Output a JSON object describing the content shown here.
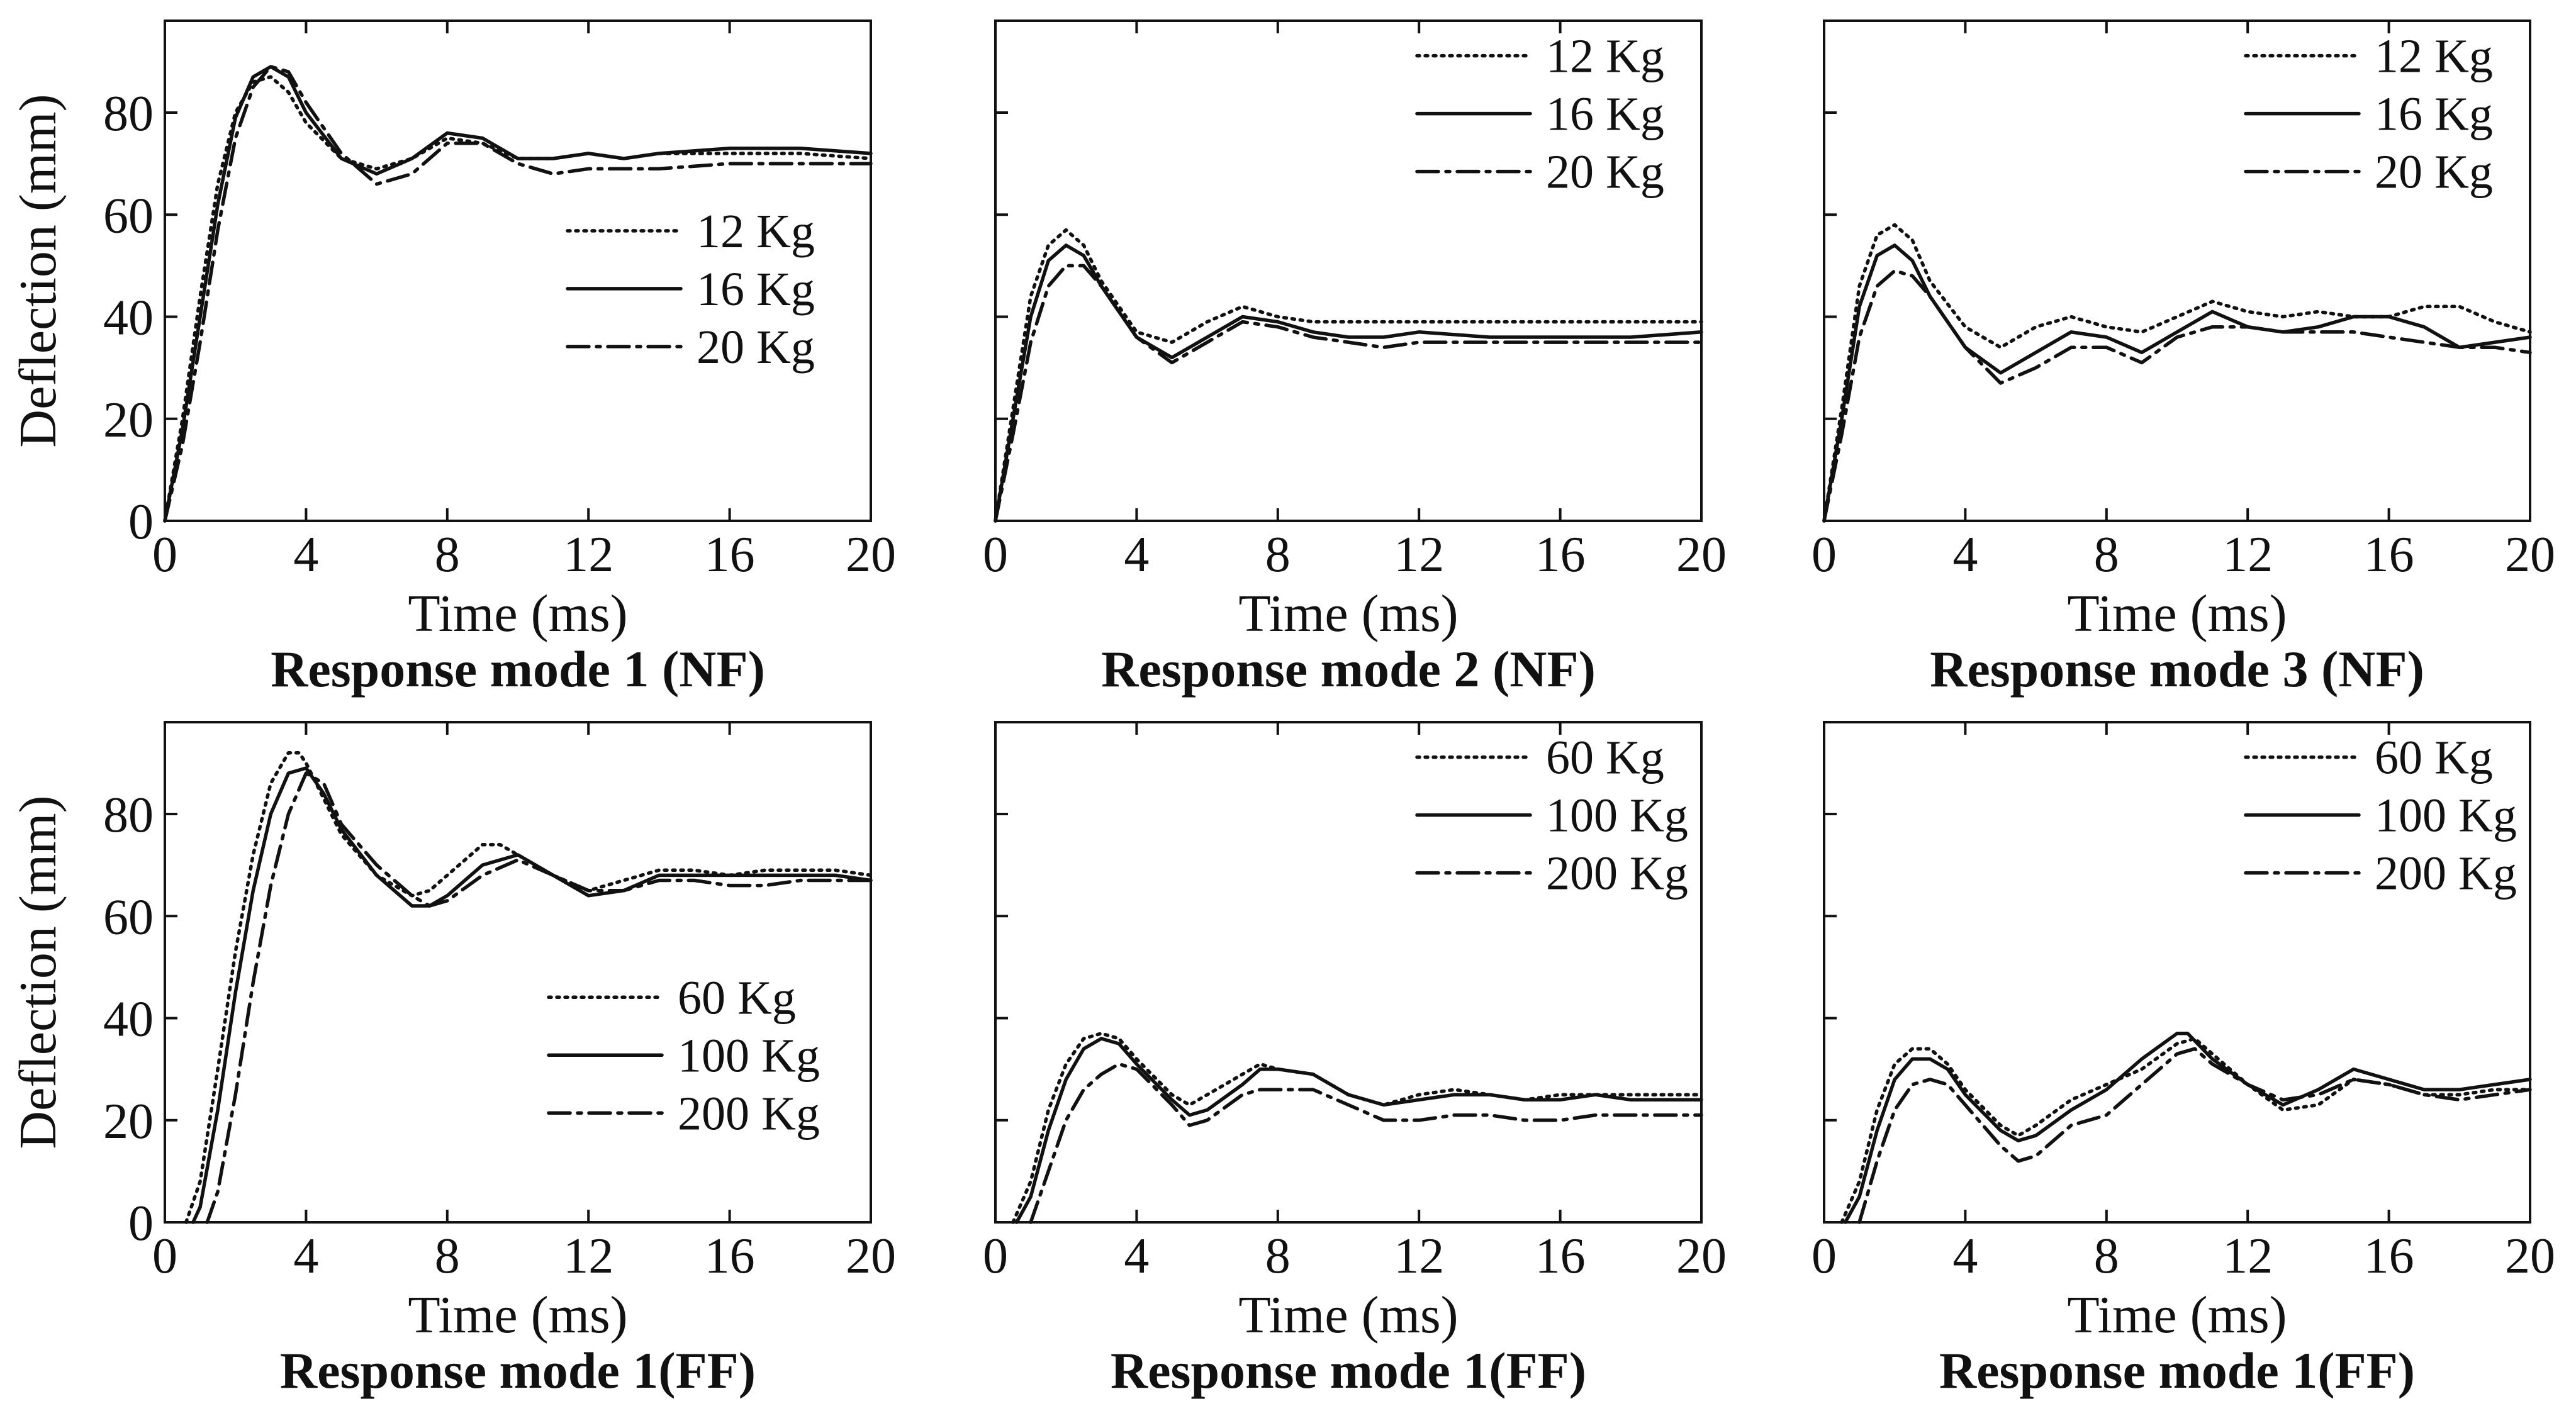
{
  "chart_data": [
    {
      "type": "line",
      "title": "Response mode 1 (NF)",
      "xlabel": "Time (ms)",
      "ylabel": "Deflection (mm)",
      "xlim": [
        0,
        20
      ],
      "ylim": [
        0,
        98
      ],
      "xticks": [
        0,
        4,
        8,
        12,
        16,
        20
      ],
      "yticks": [
        0,
        20,
        40,
        60,
        80
      ],
      "legend_position": "center-right",
      "series": [
        {
          "name": "12 Kg",
          "style": "dotted",
          "x": [
            0,
            0.5,
            1,
            1.5,
            2,
            2.5,
            3,
            3.5,
            4,
            5,
            6,
            7,
            8,
            9,
            10,
            11,
            12,
            13,
            14,
            16,
            18,
            20
          ],
          "y": [
            0,
            20,
            44,
            66,
            80,
            86,
            87,
            84,
            78,
            71,
            69,
            71,
            75,
            74,
            71,
            71,
            72,
            71,
            72,
            72,
            72,
            71
          ]
        },
        {
          "name": "16 Kg",
          "style": "solid",
          "x": [
            0,
            0.5,
            1,
            1.5,
            2,
            2.5,
            3,
            3.5,
            4,
            5,
            6,
            7,
            8,
            9,
            10,
            11,
            12,
            13,
            14,
            16,
            18,
            20
          ],
          "y": [
            0,
            18,
            40,
            62,
            79,
            87,
            89,
            87,
            80,
            71,
            68,
            71,
            76,
            75,
            71,
            71,
            72,
            71,
            72,
            73,
            73,
            72
          ]
        },
        {
          "name": "20 Kg",
          "style": "dashdot",
          "x": [
            0,
            0.5,
            1,
            1.5,
            2,
            2.5,
            3,
            3.5,
            4,
            5,
            6,
            7,
            8,
            9,
            10,
            11,
            12,
            13,
            14,
            16,
            18,
            20
          ],
          "y": [
            0,
            15,
            35,
            57,
            75,
            85,
            89,
            88,
            82,
            72,
            66,
            68,
            74,
            74,
            70,
            68,
            69,
            69,
            69,
            70,
            70,
            70
          ]
        }
      ]
    },
    {
      "type": "line",
      "title": "Response mode 2 (NF)",
      "xlabel": "Time (ms)",
      "ylabel": "",
      "xlim": [
        0,
        20
      ],
      "ylim": [
        0,
        98
      ],
      "xticks": [
        0,
        4,
        8,
        12,
        16,
        20
      ],
      "yticks": [],
      "legend_position": "top-right",
      "series": [
        {
          "name": "12 Kg",
          "style": "dotted",
          "x": [
            0,
            0.5,
            1,
            1.5,
            2,
            2.5,
            3,
            4,
            5,
            6,
            7,
            8,
            9,
            10,
            11,
            12,
            14,
            16,
            18,
            20
          ],
          "y": [
            0,
            22,
            44,
            54,
            57,
            54,
            47,
            37,
            35,
            39,
            42,
            40,
            39,
            39,
            39,
            39,
            39,
            39,
            39,
            39
          ]
        },
        {
          "name": "16 Kg",
          "style": "solid",
          "x": [
            0,
            0.5,
            1,
            1.5,
            2,
            2.5,
            3,
            4,
            5,
            6,
            7,
            8,
            9,
            10,
            11,
            12,
            14,
            16,
            18,
            20
          ],
          "y": [
            0,
            20,
            40,
            51,
            54,
            52,
            46,
            36,
            32,
            36,
            40,
            39,
            37,
            36,
            36,
            37,
            36,
            36,
            36,
            37
          ]
        },
        {
          "name": "20 Kg",
          "style": "dashdot",
          "x": [
            0,
            0.5,
            1,
            1.5,
            2,
            2.5,
            3,
            4,
            5,
            6,
            7,
            8,
            9,
            10,
            11,
            12,
            14,
            16,
            18,
            20
          ],
          "y": [
            0,
            17,
            35,
            46,
            50,
            50,
            46,
            36,
            31,
            35,
            39,
            38,
            36,
            35,
            34,
            35,
            35,
            35,
            35,
            35
          ]
        }
      ]
    },
    {
      "type": "line",
      "title": "Response mode 3 (NF)",
      "xlabel": "Time (ms)",
      "ylabel": "",
      "xlim": [
        0,
        20
      ],
      "ylim": [
        0,
        98
      ],
      "xticks": [
        0,
        4,
        8,
        12,
        16,
        20
      ],
      "yticks": [],
      "legend_position": "top-right",
      "series": [
        {
          "name": "12 Kg",
          "style": "dotted",
          "x": [
            0,
            0.5,
            1,
            1.5,
            2,
            2.5,
            3,
            4,
            5,
            6,
            7,
            8,
            9,
            10,
            11,
            12,
            13,
            14,
            15,
            16,
            17,
            18,
            19,
            20
          ],
          "y": [
            0,
            22,
            46,
            56,
            58,
            55,
            47,
            38,
            34,
            38,
            40,
            38,
            37,
            40,
            43,
            41,
            40,
            41,
            40,
            40,
            42,
            42,
            39,
            37
          ]
        },
        {
          "name": "16 Kg",
          "style": "solid",
          "x": [
            0,
            0.5,
            1,
            1.5,
            2,
            2.5,
            3,
            4,
            5,
            6,
            7,
            8,
            9,
            10,
            11,
            12,
            13,
            14,
            15,
            16,
            17,
            18,
            19,
            20
          ],
          "y": [
            0,
            20,
            42,
            52,
            54,
            51,
            44,
            34,
            29,
            33,
            37,
            36,
            33,
            37,
            41,
            38,
            37,
            38,
            40,
            40,
            38,
            34,
            35,
            36
          ]
        },
        {
          "name": "20 Kg",
          "style": "dashdot",
          "x": [
            0,
            0.5,
            1,
            1.5,
            2,
            2.5,
            3,
            4,
            5,
            6,
            7,
            8,
            9,
            10,
            11,
            12,
            13,
            14,
            15,
            16,
            17,
            18,
            19,
            20
          ],
          "y": [
            0,
            17,
            36,
            46,
            49,
            48,
            44,
            34,
            27,
            30,
            34,
            34,
            31,
            36,
            38,
            38,
            37,
            37,
            37,
            36,
            35,
            34,
            34,
            33
          ]
        }
      ]
    },
    {
      "type": "line",
      "title": "Response mode 1(FF)",
      "xlabel": "Time (ms)",
      "ylabel": "Deflection (mm)",
      "xlim": [
        0,
        20
      ],
      "ylim": [
        0,
        98
      ],
      "xticks": [
        0,
        4,
        8,
        12,
        16,
        20
      ],
      "yticks": [
        0,
        20,
        40,
        60,
        80
      ],
      "legend_position": "bottom-right",
      "series": [
        {
          "name": "60 Kg",
          "style": "dotted",
          "x": [
            0.6,
            1,
            1.5,
            2,
            2.5,
            3,
            3.5,
            3.8,
            4,
            4.5,
            5,
            6,
            7,
            7.5,
            8,
            9,
            9.5,
            10,
            11,
            12,
            13,
            14,
            15,
            16,
            17,
            18,
            19,
            20
          ],
          "y": [
            0,
            8,
            30,
            53,
            72,
            86,
            92,
            92,
            90,
            83,
            76,
            68,
            64,
            65,
            68,
            74,
            74,
            72,
            68,
            65,
            67,
            69,
            69,
            68,
            69,
            69,
            69,
            68
          ]
        },
        {
          "name": "100 Kg",
          "style": "solid",
          "x": [
            0.8,
            1,
            1.5,
            2,
            2.5,
            3,
            3.5,
            4,
            4.5,
            5,
            6,
            7,
            7.5,
            8,
            9,
            10,
            11,
            12,
            13,
            14,
            15,
            16,
            17,
            18,
            19,
            20
          ],
          "y": [
            0,
            3,
            22,
            45,
            65,
            80,
            88,
            89,
            84,
            77,
            68,
            62,
            62,
            64,
            70,
            72,
            68,
            64,
            65,
            68,
            68,
            68,
            68,
            68,
            68,
            67
          ]
        },
        {
          "name": "200 Kg",
          "style": "dashdot",
          "x": [
            1.2,
            1.5,
            2,
            2.5,
            3,
            3.5,
            4,
            4.5,
            5,
            6,
            7,
            7.5,
            8,
            9,
            10,
            11,
            12,
            13,
            14,
            15,
            16,
            17,
            18,
            19,
            20
          ],
          "y": [
            0,
            6,
            25,
            47,
            66,
            80,
            88,
            86,
            78,
            70,
            64,
            62,
            63,
            68,
            71,
            68,
            65,
            65,
            67,
            67,
            66,
            66,
            67,
            67,
            67
          ]
        }
      ]
    },
    {
      "type": "line",
      "title": "Response mode 1(FF)",
      "xlabel": "Time (ms)",
      "ylabel": "",
      "xlim": [
        0,
        20
      ],
      "ylim": [
        0,
        98
      ],
      "xticks": [
        0,
        4,
        8,
        12,
        16,
        20
      ],
      "yticks": [],
      "legend_position": "top-right",
      "series": [
        {
          "name": "60 Kg",
          "style": "dotted",
          "x": [
            0.5,
            1,
            1.5,
            2,
            2.5,
            3,
            3.5,
            4,
            5,
            5.5,
            6,
            7,
            7.5,
            8,
            9,
            10,
            11,
            12,
            13,
            14,
            15,
            16,
            17,
            18,
            19,
            20
          ],
          "y": [
            0,
            8,
            22,
            31,
            36,
            37,
            36,
            32,
            25,
            23,
            25,
            29,
            31,
            30,
            29,
            25,
            23,
            25,
            26,
            25,
            24,
            25,
            25,
            25,
            25,
            25
          ]
        },
        {
          "name": "100 Kg",
          "style": "solid",
          "x": [
            0.6,
            1,
            1.5,
            2,
            2.5,
            3,
            3.5,
            4,
            5,
            5.5,
            6,
            7,
            7.5,
            8,
            9,
            10,
            11,
            12,
            13,
            14,
            15,
            16,
            17,
            18,
            19,
            20
          ],
          "y": [
            0,
            5,
            18,
            28,
            34,
            36,
            35,
            31,
            24,
            21,
            22,
            27,
            30,
            30,
            29,
            25,
            23,
            24,
            25,
            25,
            24,
            24,
            25,
            24,
            24,
            24
          ]
        },
        {
          "name": "200 Kg",
          "style": "dashdot",
          "x": [
            1,
            1.5,
            2,
            2.5,
            3,
            3.5,
            4,
            5,
            5.5,
            6,
            7,
            7.5,
            8,
            9,
            10,
            11,
            12,
            13,
            14,
            15,
            16,
            17,
            18,
            19,
            20
          ],
          "y": [
            0,
            10,
            20,
            26,
            29,
            31,
            30,
            23,
            19,
            20,
            25,
            26,
            26,
            26,
            23,
            20,
            20,
            21,
            21,
            20,
            20,
            21,
            21,
            21,
            21
          ]
        }
      ]
    },
    {
      "type": "line",
      "title": "Response mode 1(FF)",
      "xlabel": "Time (ms)",
      "ylabel": "",
      "xlim": [
        0,
        20
      ],
      "ylim": [
        0,
        98
      ],
      "xticks": [
        0,
        4,
        8,
        12,
        16,
        20
      ],
      "yticks": [],
      "legend_position": "top-right",
      "series": [
        {
          "name": "60 Kg",
          "style": "dotted",
          "x": [
            0.5,
            1,
            1.5,
            2,
            2.5,
            3,
            3.5,
            4,
            5,
            5.5,
            6,
            7,
            8,
            9,
            10,
            10.5,
            11,
            12,
            13,
            14,
            15,
            16,
            17,
            18,
            19,
            20
          ],
          "y": [
            0,
            8,
            22,
            31,
            34,
            34,
            31,
            26,
            19,
            17,
            19,
            24,
            27,
            30,
            35,
            36,
            33,
            27,
            22,
            23,
            28,
            27,
            25,
            25,
            26,
            26
          ]
        },
        {
          "name": "100 Kg",
          "style": "solid",
          "x": [
            0.6,
            1,
            1.5,
            2,
            2.5,
            3,
            3.5,
            4,
            5,
            5.5,
            6,
            7,
            8,
            9,
            10,
            10.3,
            11,
            12,
            13,
            14,
            15,
            16,
            17,
            18,
            19,
            20
          ],
          "y": [
            0,
            5,
            18,
            28,
            32,
            32,
            30,
            25,
            18,
            16,
            17,
            22,
            26,
            32,
            37,
            37,
            32,
            27,
            23,
            26,
            30,
            28,
            26,
            26,
            27,
            28
          ]
        },
        {
          "name": "200 Kg",
          "style": "dashdot",
          "x": [
            1,
            1.5,
            2,
            2.5,
            3,
            3.5,
            4,
            5,
            5.5,
            6,
            7,
            8,
            9,
            10,
            10.5,
            11,
            12,
            13,
            14,
            15,
            16,
            17,
            18,
            19,
            20
          ],
          "y": [
            0,
            12,
            22,
            27,
            28,
            27,
            23,
            15,
            12,
            13,
            19,
            21,
            27,
            33,
            34,
            31,
            27,
            24,
            25,
            28,
            27,
            25,
            24,
            25,
            26
          ]
        }
      ]
    }
  ]
}
